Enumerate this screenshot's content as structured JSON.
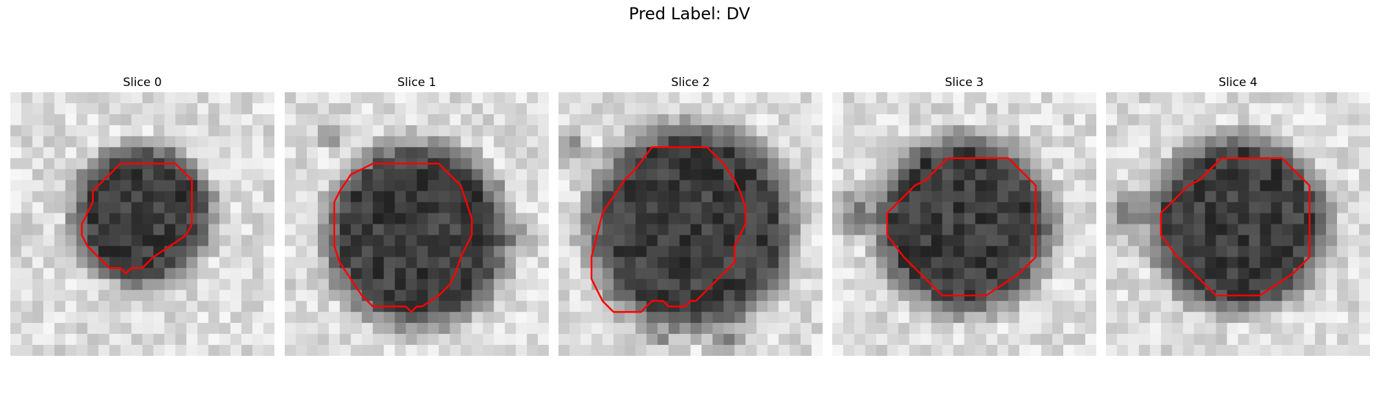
{
  "figure": {
    "title": "Pred Label: DV",
    "contour_color": "#ff0000"
  },
  "panels": [
    {
      "title": "Slice 0",
      "contour": [
        [
          13,
          6.5
        ],
        [
          15,
          6.5
        ],
        [
          16.5,
          8
        ],
        [
          16.5,
          12
        ],
        [
          16,
          13
        ],
        [
          14.5,
          14
        ],
        [
          13,
          15
        ],
        [
          12,
          16
        ],
        [
          11,
          16
        ],
        [
          10.5,
          16.5
        ],
        [
          10,
          16
        ],
        [
          9,
          16
        ],
        [
          8,
          15
        ],
        [
          7,
          14
        ],
        [
          6.5,
          13
        ],
        [
          6.5,
          12
        ],
        [
          7,
          11
        ],
        [
          7.5,
          10
        ],
        [
          7.5,
          9
        ],
        [
          9,
          7.5
        ],
        [
          10,
          6.5
        ]
      ]
    },
    {
      "title": "Slice 1",
      "contour": [
        [
          10,
          6.5
        ],
        [
          14,
          6.5
        ],
        [
          15,
          7.5
        ],
        [
          16,
          8.5
        ],
        [
          16.5,
          10
        ],
        [
          17,
          11.5
        ],
        [
          17,
          13
        ],
        [
          16.5,
          14
        ],
        [
          16,
          15
        ],
        [
          15.5,
          16.5
        ],
        [
          15,
          17.5
        ],
        [
          14,
          18.5
        ],
        [
          12.5,
          19.5
        ],
        [
          12,
          19.5
        ],
        [
          11.5,
          20
        ],
        [
          11,
          19.5
        ],
        [
          10,
          19.5
        ],
        [
          8,
          19.5
        ],
        [
          7,
          18.5
        ],
        [
          6,
          17
        ],
        [
          5,
          15.5
        ],
        [
          4.5,
          14
        ],
        [
          4.5,
          10
        ],
        [
          5,
          9
        ],
        [
          6,
          7.5
        ],
        [
          7,
          7
        ],
        [
          8,
          6.5
        ]
      ]
    },
    {
      "title": "Slice 2",
      "contour": [
        [
          9,
          5
        ],
        [
          13.5,
          5
        ],
        [
          15,
          6.5
        ],
        [
          16,
          8
        ],
        [
          16.5,
          9
        ],
        [
          17,
          10.5
        ],
        [
          17,
          12
        ],
        [
          16.5,
          13
        ],
        [
          16,
          14
        ],
        [
          16,
          15.5
        ],
        [
          15.5,
          16
        ],
        [
          14,
          17.5
        ],
        [
          13,
          18.5
        ],
        [
          12.5,
          19
        ],
        [
          12,
          19
        ],
        [
          11.5,
          19.5
        ],
        [
          10,
          19.5
        ],
        [
          9.5,
          19
        ],
        [
          8.5,
          19
        ],
        [
          7.5,
          20
        ],
        [
          6.5,
          20
        ],
        [
          5,
          20
        ],
        [
          4,
          19
        ],
        [
          3.5,
          18
        ],
        [
          3,
          17
        ],
        [
          3,
          15
        ],
        [
          3.5,
          13
        ],
        [
          4,
          11
        ],
        [
          5,
          9.5
        ],
        [
          6,
          8
        ],
        [
          7,
          7
        ],
        [
          8.5,
          5
        ]
      ]
    },
    {
      "title": "Slice 3",
      "contour": [
        [
          11,
          6
        ],
        [
          16,
          6
        ],
        [
          17,
          7
        ],
        [
          18.5,
          8.5
        ],
        [
          18.5,
          15
        ],
        [
          17,
          16.5
        ],
        [
          15.5,
          17.5
        ],
        [
          14,
          18.5
        ],
        [
          10,
          18.5
        ],
        [
          8.5,
          17
        ],
        [
          7.5,
          16
        ],
        [
          6.5,
          15
        ],
        [
          5,
          13
        ],
        [
          5,
          11
        ],
        [
          6.5,
          9.5
        ],
        [
          7.5,
          8.5
        ],
        [
          8.5,
          8
        ],
        [
          9.5,
          7
        ],
        [
          10.5,
          6
        ]
      ]
    },
    {
      "title": "Slice 4",
      "contour": [
        [
          11,
          6
        ],
        [
          16,
          6
        ],
        [
          17,
          7
        ],
        [
          18.5,
          8.5
        ],
        [
          18.5,
          15
        ],
        [
          17,
          16.5
        ],
        [
          15.5,
          17.5
        ],
        [
          14,
          18.5
        ],
        [
          10,
          18.5
        ],
        [
          8.5,
          17
        ],
        [
          7.5,
          16
        ],
        [
          6.5,
          15
        ],
        [
          5,
          13
        ],
        [
          5,
          11
        ],
        [
          6.5,
          9.5
        ],
        [
          7.5,
          8.5
        ],
        [
          8.5,
          8
        ],
        [
          9.5,
          7
        ],
        [
          10.5,
          6
        ]
      ]
    }
  ]
}
